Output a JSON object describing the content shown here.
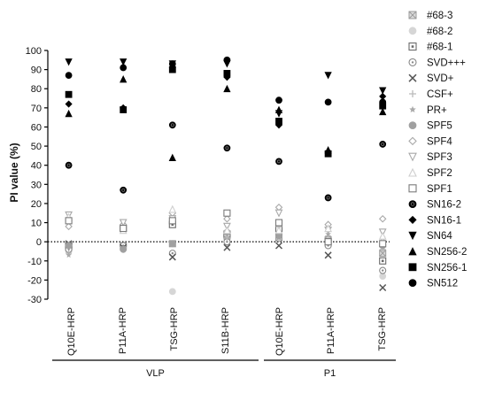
{
  "chart_data": {
    "type": "scatter",
    "ylabel": "PI value (%)",
    "ylim": [
      -30,
      100
    ],
    "yticks": [
      -30,
      -20,
      -10,
      0,
      10,
      20,
      30,
      40,
      50,
      60,
      70,
      80,
      90,
      100
    ],
    "reference_line": {
      "y": 0,
      "style": "dotted"
    },
    "categories": [
      "Q10E-HRP",
      "P11A-HRP",
      "TSG-HRP",
      "S11B-HRP",
      "Q10E-HRP",
      "P11A-HRP",
      "TSG-HRP"
    ],
    "groups": [
      {
        "label": "VLP",
        "categories": [
          0,
          1,
          2,
          3
        ]
      },
      {
        "label": "P1",
        "categories": [
          4,
          5,
          6
        ]
      }
    ],
    "legend_position": "right",
    "series": [
      {
        "name": "#68-3",
        "marker": "square-x",
        "color": "#9a9a9a",
        "values": [
          -3,
          -2,
          -1,
          3,
          2,
          1,
          -6
        ]
      },
      {
        "name": "#68-2",
        "marker": "circle",
        "color": "#d6d6d6",
        "values": [
          -5,
          -3,
          -26,
          -1,
          5,
          -2,
          -18
        ]
      },
      {
        "name": "#68-1",
        "marker": "square-dot",
        "color": "#6a6a6a",
        "values": [
          -2,
          7,
          9,
          4,
          7,
          0,
          -10
        ]
      },
      {
        "name": "SVD+++",
        "marker": "circle-dot",
        "color": "#8a8a8a",
        "values": [
          -4,
          -2,
          -6,
          0,
          4,
          -2,
          -15
        ]
      },
      {
        "name": "SVD+",
        "marker": "x",
        "color": "#555555",
        "values": [
          -1,
          -3,
          -8,
          -3,
          -2,
          -7,
          -24
        ]
      },
      {
        "name": "CSF+",
        "marker": "plus",
        "color": "#bbbbbb",
        "values": [
          -6,
          -4,
          12,
          2,
          8,
          3,
          -4
        ]
      },
      {
        "name": "PR+",
        "marker": "star",
        "color": "#aaaaaa",
        "values": [
          -7,
          9,
          15,
          4,
          9,
          4,
          2
        ]
      },
      {
        "name": "SPF5",
        "marker": "circle",
        "color": "#a0a0a0",
        "values": [
          -2,
          -4,
          -1,
          5,
          3,
          0,
          -2
        ]
      },
      {
        "name": "SPF4",
        "marker": "diamond-open",
        "color": "#a8a8a8",
        "values": [
          8,
          9,
          15,
          12,
          18,
          9,
          12
        ]
      },
      {
        "name": "SPF3",
        "marker": "triangle-down-open",
        "color": "#a8a8a8",
        "values": [
          14,
          10,
          12,
          8,
          15,
          6,
          5
        ]
      },
      {
        "name": "SPF2",
        "marker": "triangle-up-open",
        "color": "#cfcfcf",
        "values": [
          13,
          6,
          17,
          6,
          6,
          7,
          3
        ]
      },
      {
        "name": "SPF1",
        "marker": "square-open",
        "color": "#7a7a7a",
        "values": [
          11,
          7,
          11,
          15,
          10,
          0,
          -1
        ]
      },
      {
        "name": "SN16-2",
        "marker": "circle-ring",
        "color": "#000000",
        "values": [
          40,
          27,
          61,
          49,
          42,
          23,
          51
        ]
      },
      {
        "name": "SN16-1",
        "marker": "diamond",
        "color": "#000000",
        "values": [
          72,
          70,
          91,
          86,
          61,
          47,
          76
        ]
      },
      {
        "name": "SN64",
        "marker": "triangle-down",
        "color": "#000000",
        "values": [
          94,
          94,
          93,
          93,
          67,
          87,
          79
        ]
      },
      {
        "name": "SN256-2",
        "marker": "triangle-up",
        "color": "#000000",
        "values": [
          67,
          85,
          44,
          80,
          69,
          48,
          68
        ]
      },
      {
        "name": "SN256-1",
        "marker": "square",
        "color": "#000000",
        "values": [
          77,
          69,
          90,
          88,
          63,
          46,
          71
        ]
      },
      {
        "name": "SN512",
        "marker": "circle",
        "color": "#000000",
        "values": [
          87,
          91,
          93,
          95,
          74,
          73,
          73
        ]
      }
    ]
  }
}
